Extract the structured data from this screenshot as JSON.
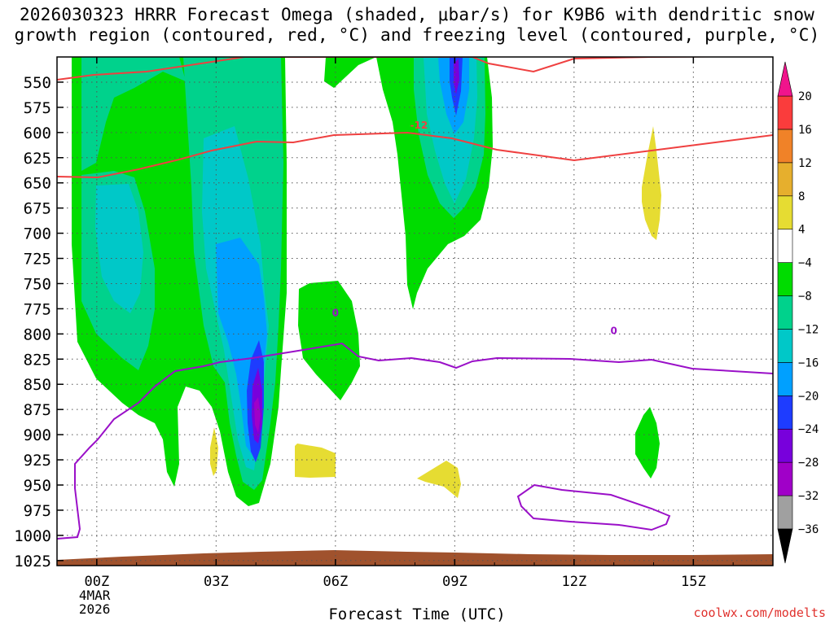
{
  "title": {
    "line1": "2026030323 HRRR Forecast Omega (shaded, μbar/s) for K9B6 with dendritic snow",
    "line2": "growth region (contoured, red, °C) and freezing level (contoured, purple, °C)"
  },
  "credit": "coolwx.com/modelts",
  "chart_data": {
    "type": "area",
    "title": "2026030323 HRRR Forecast Omega (shaded, μbar/s) for K9B6 with dendritic snow growth region (contoured, red, °C) and freezing level (contoured, purple, °C)",
    "xlabel": "Forecast Time (UTC)",
    "ylabel": "",
    "x_ticks": [
      {
        "label": "00Z",
        "hour": 0,
        "sub": [
          "4MAR",
          "2026"
        ]
      },
      {
        "label": "03Z",
        "hour": 3
      },
      {
        "label": "06Z",
        "hour": 6
      },
      {
        "label": "09Z",
        "hour": 9
      },
      {
        "label": "12Z",
        "hour": 12
      },
      {
        "label": "15Z",
        "hour": 15
      }
    ],
    "xlim": [
      -1,
      17
    ],
    "y_ticks": [
      550,
      575,
      600,
      625,
      650,
      675,
      700,
      725,
      750,
      775,
      800,
      825,
      850,
      875,
      900,
      925,
      950,
      975,
      1000,
      1025
    ],
    "ylim": [
      1030,
      525
    ],
    "grid": true,
    "colorbar": {
      "unit": "μbar/s",
      "bounds": [
        -36,
        -32,
        -28,
        -24,
        -20,
        -16,
        -12,
        -8,
        -4,
        4,
        8,
        12,
        16,
        20
      ],
      "labels": [
        "20",
        "16",
        "12",
        "8",
        "4",
        "-4",
        "-8",
        "-12",
        "-16",
        "-20",
        "-24",
        "-28",
        "-32",
        "-36"
      ],
      "colors": [
        "#a0a0a0",
        "#a000c8",
        "#7800dc",
        "#1e3cff",
        "#00a0ff",
        "#00c8c8",
        "#00d28c",
        "#00dc00",
        "#ffffff",
        "#e6dc32",
        "#e6af2d",
        "#f08228",
        "#fa3c3c"
      ],
      "low_extend_color": "#000000",
      "high_extend_color": "#f0148c"
    },
    "contour_labels": [
      {
        "label": "-12",
        "color": "#ef4040",
        "hour": 8.1,
        "p": 593
      },
      {
        "label": "0",
        "color": "#9a10c8",
        "hour": 6,
        "p": 779
      },
      {
        "label": "0",
        "color": "#9a10c8",
        "hour": 13,
        "p": 797
      }
    ]
  }
}
